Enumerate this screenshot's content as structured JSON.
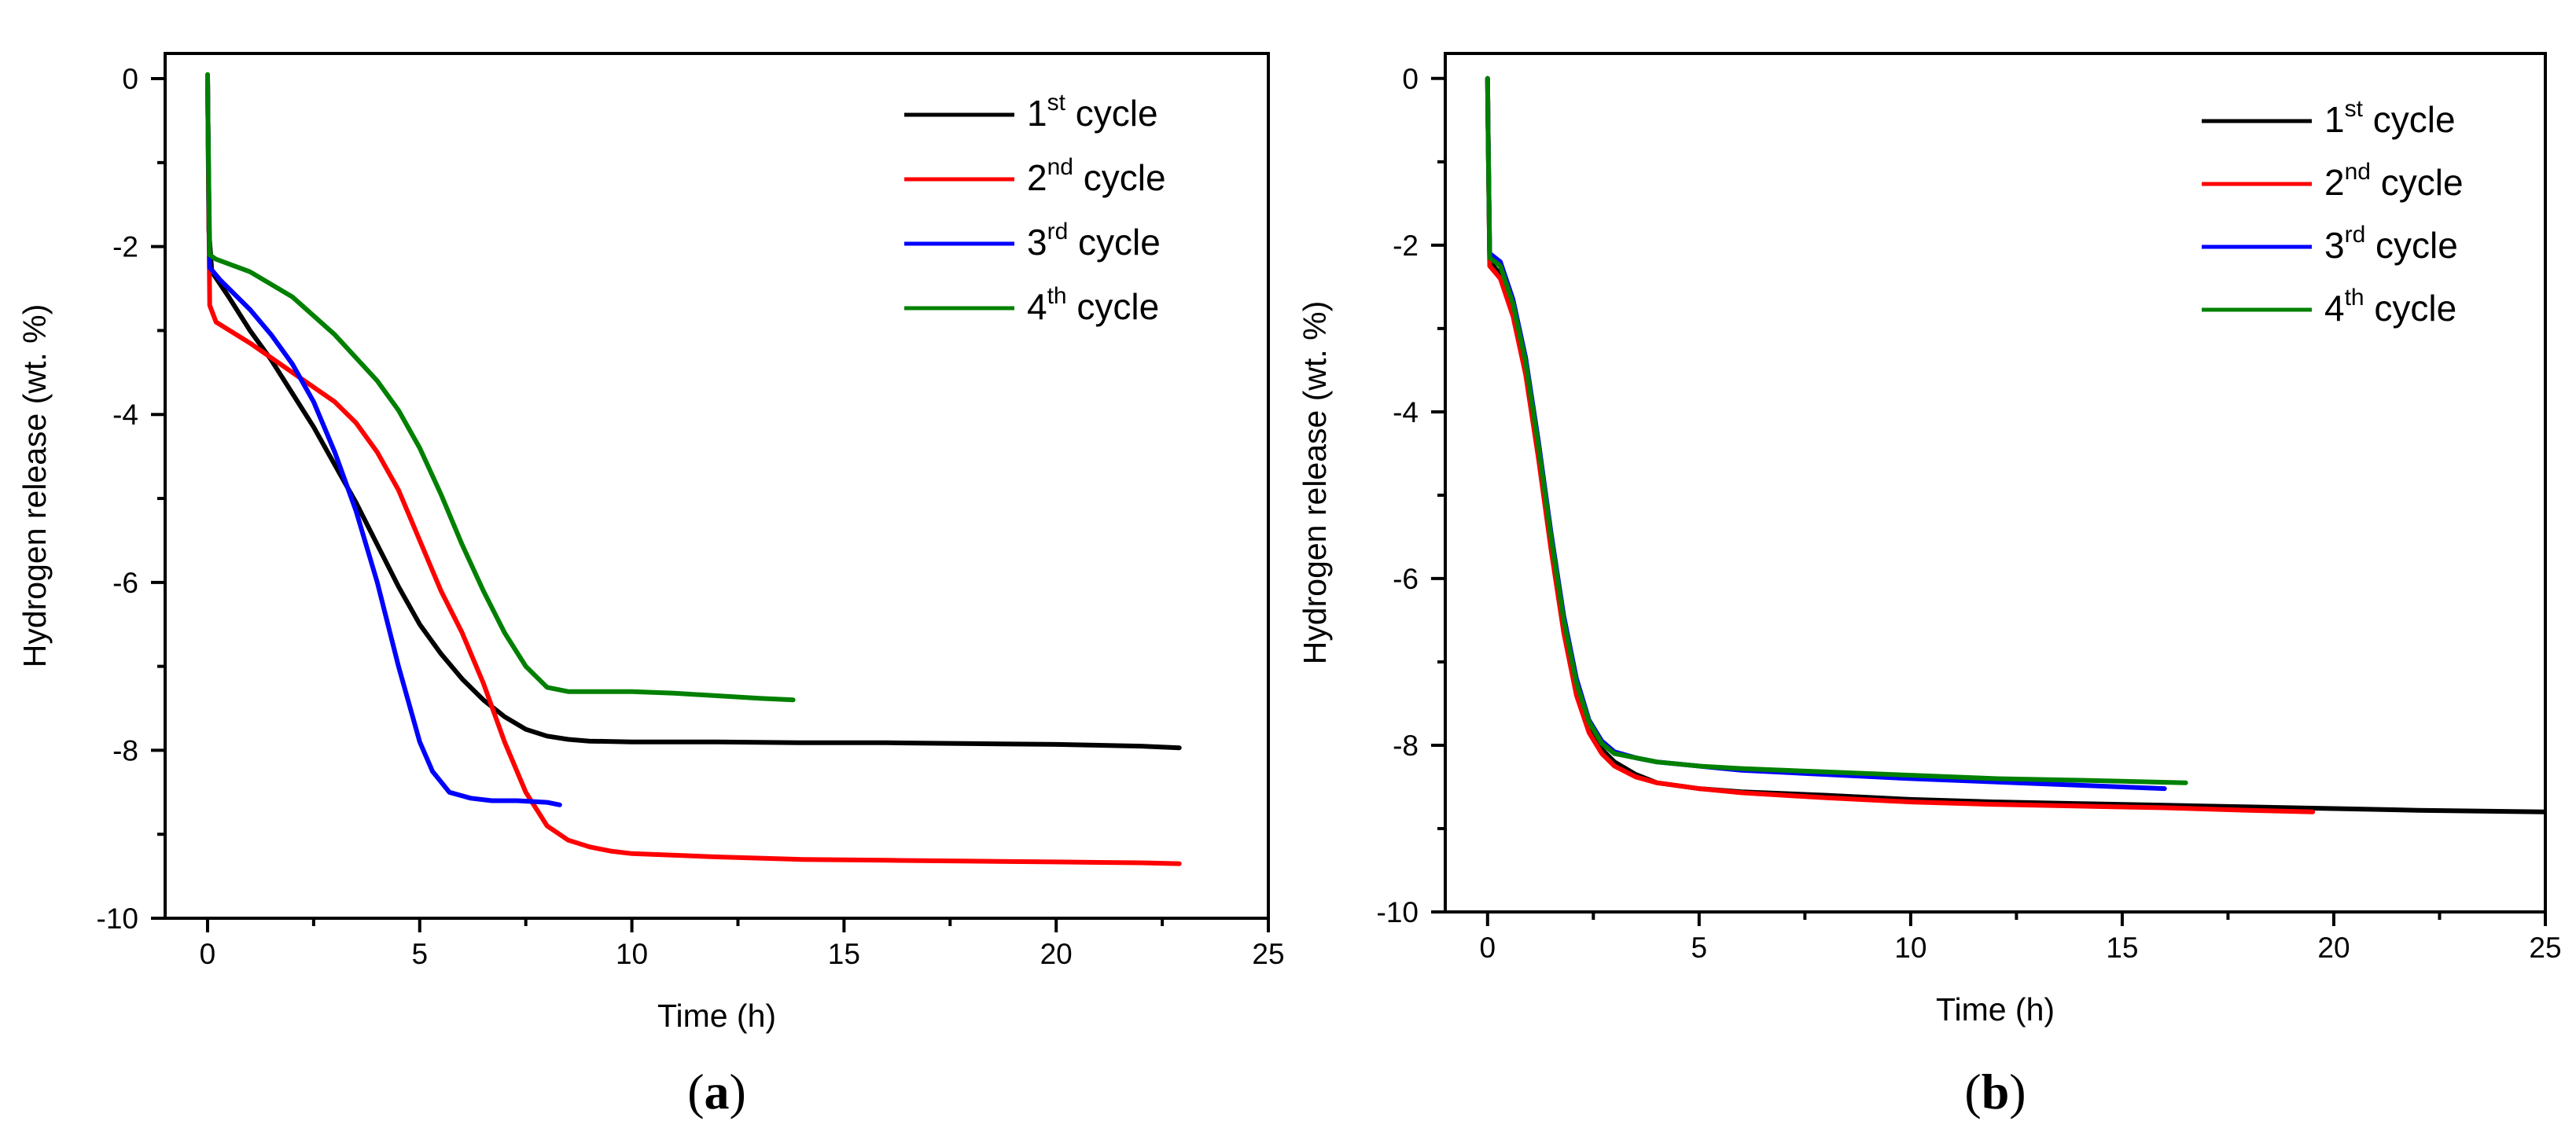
{
  "panels": [
    {
      "id": "a",
      "label": "a",
      "chart_data": {
        "type": "line",
        "xlabel": "Time (h)",
        "ylabel": "Hydrogen release (wt. %)",
        "xlim": [
          -1,
          25
        ],
        "ylim": [
          -10,
          0.3
        ],
        "x_ticks": [
          0,
          5,
          10,
          15,
          20,
          25
        ],
        "y_ticks": [
          0,
          -2,
          -4,
          -6,
          -8,
          -10
        ],
        "legend_position": "top-right",
        "series": [
          {
            "name": "1st cycle",
            "ordinal": "1",
            "suffix": "st",
            "rest": " cycle",
            "color": "#000000",
            "x": [
              0,
              0.01,
              0.03,
              0.1,
              0.5,
              1,
              1.5,
              2,
              2.5,
              3,
              3.5,
              4,
              4.5,
              5,
              5.5,
              6,
              6.5,
              7,
              7.5,
              8,
              8.5,
              9,
              10,
              12,
              14,
              16,
              18,
              20,
              22,
              22.9
            ],
            "y": [
              0,
              -0.5,
              -1.8,
              -2.3,
              -2.6,
              -3.0,
              -3.35,
              -3.75,
              -4.15,
              -4.6,
              -5.05,
              -5.55,
              -6.05,
              -6.5,
              -6.85,
              -7.15,
              -7.4,
              -7.6,
              -7.75,
              -7.83,
              -7.87,
              -7.89,
              -7.9,
              -7.9,
              -7.91,
              -7.91,
              -7.92,
              -7.93,
              -7.95,
              -7.97
            ]
          },
          {
            "name": "2nd cycle",
            "ordinal": "2",
            "suffix": "nd",
            "rest": " cycle",
            "color": "#ff0000",
            "x": [
              0,
              0.01,
              0.05,
              0.2,
              1,
              2,
              3,
              3.5,
              4,
              4.5,
              5,
              5.5,
              6,
              6.5,
              7,
              7.5,
              8,
              8.5,
              9,
              9.5,
              10,
              12,
              14,
              16,
              18,
              20,
              22,
              22.9
            ],
            "y": [
              0,
              -0.5,
              -2.7,
              -2.9,
              -3.15,
              -3.5,
              -3.85,
              -4.1,
              -4.45,
              -4.9,
              -5.5,
              -6.1,
              -6.6,
              -7.2,
              -7.9,
              -8.5,
              -8.9,
              -9.07,
              -9.15,
              -9.2,
              -9.23,
              -9.27,
              -9.3,
              -9.31,
              -9.32,
              -9.33,
              -9.34,
              -9.35
            ]
          },
          {
            "name": "3rd cycle",
            "ordinal": "3",
            "suffix": "rd",
            "rest": " cycle",
            "color": "#0000ff",
            "x": [
              0,
              0.01,
              0.05,
              0.3,
              1,
              1.5,
              2,
              2.5,
              3,
              3.5,
              4,
              4.5,
              5,
              5.3,
              5.7,
              6.2,
              6.7,
              7.3,
              8,
              8.3
            ],
            "y": [
              0,
              -0.5,
              -2.25,
              -2.4,
              -2.75,
              -3.05,
              -3.4,
              -3.85,
              -4.45,
              -5.15,
              -6.0,
              -7.0,
              -7.9,
              -8.25,
              -8.5,
              -8.57,
              -8.6,
              -8.6,
              -8.62,
              -8.65
            ]
          },
          {
            "name": "4th cycle",
            "ordinal": "4",
            "suffix": "th",
            "rest": " cycle",
            "color": "#008000",
            "x": [
              0,
              0.01,
              0.05,
              0.2,
              1,
              2,
              3,
              4,
              4.5,
              5,
              5.5,
              6,
              6.5,
              7,
              7.5,
              8,
              8.5,
              9,
              10,
              11,
              12,
              13,
              13.8
            ],
            "y": [
              0.05,
              -0.5,
              -2.1,
              -2.15,
              -2.3,
              -2.6,
              -3.05,
              -3.6,
              -3.95,
              -4.4,
              -4.95,
              -5.55,
              -6.1,
              -6.6,
              -7.0,
              -7.25,
              -7.3,
              -7.3,
              -7.3,
              -7.32,
              -7.35,
              -7.38,
              -7.4
            ]
          }
        ]
      }
    },
    {
      "id": "b",
      "label": "b",
      "chart_data": {
        "type": "line",
        "xlabel": "Time (h)",
        "ylabel": "Hydrogen release (wt. %)",
        "xlim": [
          -1,
          25
        ],
        "ylim": [
          -10,
          0.3
        ],
        "x_ticks": [
          0,
          5,
          10,
          15,
          20,
          25
        ],
        "y_ticks": [
          0,
          -2,
          -4,
          -6,
          -8,
          -10
        ],
        "legend_position": "top-right",
        "series": [
          {
            "name": "1st cycle",
            "ordinal": "1",
            "suffix": "st",
            "rest": " cycle",
            "color": "#000000",
            "x": [
              0,
              0.01,
              0.05,
              0.3,
              0.6,
              0.9,
              1.2,
              1.5,
              1.8,
              2.1,
              2.4,
              2.7,
              3,
              3.5,
              4,
              5,
              6,
              8,
              10,
              12,
              14,
              16,
              18,
              20,
              22,
              25
            ],
            "y": [
              0,
              -0.5,
              -2.2,
              -2.35,
              -2.8,
              -3.5,
              -4.5,
              -5.6,
              -6.6,
              -7.35,
              -7.8,
              -8.05,
              -8.2,
              -8.35,
              -8.45,
              -8.52,
              -8.56,
              -8.6,
              -8.65,
              -8.68,
              -8.7,
              -8.72,
              -8.74,
              -8.76,
              -8.78,
              -8.8
            ]
          },
          {
            "name": "2nd cycle",
            "ordinal": "2",
            "suffix": "nd",
            "rest": " cycle",
            "color": "#ff0000",
            "x": [
              0,
              0.01,
              0.05,
              0.3,
              0.6,
              0.9,
              1.2,
              1.5,
              1.8,
              2.1,
              2.4,
              2.7,
              3,
              3.5,
              4,
              5,
              6,
              8,
              10,
              12,
              14,
              16,
              18,
              19.5
            ],
            "y": [
              0,
              -0.5,
              -2.25,
              -2.4,
              -2.85,
              -3.55,
              -4.55,
              -5.65,
              -6.65,
              -7.4,
              -7.85,
              -8.1,
              -8.25,
              -8.38,
              -8.45,
              -8.52,
              -8.57,
              -8.63,
              -8.68,
              -8.71,
              -8.73,
              -8.75,
              -8.78,
              -8.8
            ]
          },
          {
            "name": "3rd cycle",
            "ordinal": "3",
            "suffix": "rd",
            "rest": " cycle",
            "color": "#0000ff",
            "x": [
              0,
              0.01,
              0.05,
              0.3,
              0.6,
              0.9,
              1.2,
              1.5,
              1.8,
              2.1,
              2.4,
              2.7,
              3,
              3.5,
              4,
              5,
              6,
              8,
              10,
              12,
              14,
              16
            ],
            "y": [
              0,
              -0.5,
              -2.1,
              -2.2,
              -2.65,
              -3.35,
              -4.35,
              -5.45,
              -6.45,
              -7.2,
              -7.7,
              -7.95,
              -8.08,
              -8.15,
              -8.2,
              -8.25,
              -8.3,
              -8.35,
              -8.4,
              -8.44,
              -8.48,
              -8.52
            ]
          },
          {
            "name": "4th cycle",
            "ordinal": "4",
            "suffix": "th",
            "rest": " cycle",
            "color": "#008000",
            "x": [
              0,
              0.01,
              0.05,
              0.3,
              0.6,
              0.9,
              1.2,
              1.5,
              1.8,
              2.1,
              2.4,
              2.7,
              3,
              3.5,
              4,
              5,
              6,
              8,
              10,
              12,
              14,
              16.5
            ],
            "y": [
              0,
              -0.5,
              -2.15,
              -2.25,
              -2.7,
              -3.4,
              -4.4,
              -5.5,
              -6.5,
              -7.25,
              -7.72,
              -7.98,
              -8.1,
              -8.15,
              -8.2,
              -8.25,
              -8.28,
              -8.32,
              -8.36,
              -8.4,
              -8.42,
              -8.45
            ]
          }
        ]
      }
    }
  ]
}
